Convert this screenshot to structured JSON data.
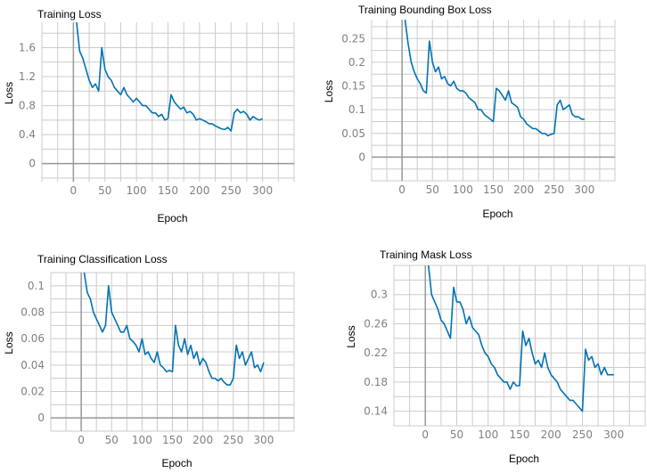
{
  "chart_data": [
    {
      "type": "line",
      "title": "Training Loss",
      "xlabel": "Epoch",
      "ylabel": "Loss",
      "xlim": [
        -50,
        350
      ],
      "ylim": [
        -0.25,
        1.95
      ],
      "xticks": [
        0,
        50,
        100,
        150,
        200,
        250,
        300
      ],
      "yticks": [
        0,
        0.4,
        0.8,
        1.2,
        1.6
      ],
      "ytick_labels": [
        "0",
        "0.4",
        "0.8",
        "1.2",
        "1.6"
      ],
      "grid": true,
      "series": [
        {
          "color": "#0072b2",
          "x": [
            5,
            10,
            15,
            20,
            25,
            30,
            35,
            40,
            45,
            50,
            55,
            60,
            65,
            70,
            75,
            80,
            85,
            90,
            95,
            100,
            105,
            110,
            115,
            120,
            125,
            130,
            135,
            140,
            145,
            150,
            155,
            160,
            165,
            170,
            175,
            180,
            185,
            190,
            195,
            200,
            205,
            210,
            215,
            220,
            225,
            230,
            235,
            240,
            245,
            250,
            255,
            260,
            265,
            270,
            275,
            280,
            285,
            290,
            295,
            300
          ],
          "y": [
            1.95,
            1.55,
            1.45,
            1.3,
            1.15,
            1.05,
            1.1,
            1.0,
            1.6,
            1.3,
            1.2,
            1.15,
            1.05,
            1.0,
            0.95,
            1.05,
            0.95,
            0.9,
            0.85,
            0.9,
            0.85,
            0.8,
            0.8,
            0.75,
            0.7,
            0.7,
            0.65,
            0.68,
            0.6,
            0.62,
            0.95,
            0.85,
            0.8,
            0.75,
            0.78,
            0.7,
            0.72,
            0.68,
            0.6,
            0.62,
            0.6,
            0.58,
            0.55,
            0.55,
            0.52,
            0.5,
            0.48,
            0.47,
            0.5,
            0.45,
            0.7,
            0.75,
            0.7,
            0.72,
            0.68,
            0.6,
            0.65,
            0.62,
            0.6,
            0.62
          ]
        }
      ]
    },
    {
      "type": "line",
      "title": "Training Bounding Box Loss",
      "xlabel": "Epoch",
      "ylabel": "Loss",
      "xlim": [
        -50,
        350
      ],
      "ylim": [
        -0.05,
        0.29
      ],
      "xticks": [
        0,
        50,
        100,
        150,
        200,
        250,
        300
      ],
      "yticks": [
        0,
        0.05,
        0.1,
        0.15,
        0.2,
        0.25
      ],
      "ytick_labels": [
        "0",
        "0.05",
        "0.1",
        "0.15",
        "0.2",
        "0.25"
      ],
      "grid": true,
      "series": [
        {
          "color": "#0072b2",
          "x": [
            5,
            10,
            15,
            20,
            25,
            30,
            35,
            40,
            45,
            50,
            55,
            60,
            65,
            70,
            75,
            80,
            85,
            90,
            95,
            100,
            105,
            110,
            115,
            120,
            125,
            130,
            135,
            140,
            145,
            150,
            155,
            160,
            165,
            170,
            175,
            180,
            185,
            190,
            195,
            200,
            205,
            210,
            215,
            220,
            225,
            230,
            235,
            240,
            245,
            250,
            255,
            260,
            265,
            270,
            275,
            280,
            285,
            290,
            295,
            300
          ],
          "y": [
            0.29,
            0.24,
            0.2,
            0.18,
            0.165,
            0.155,
            0.14,
            0.135,
            0.245,
            0.2,
            0.18,
            0.19,
            0.165,
            0.17,
            0.155,
            0.15,
            0.16,
            0.145,
            0.14,
            0.14,
            0.135,
            0.125,
            0.12,
            0.115,
            0.1,
            0.1,
            0.09,
            0.085,
            0.08,
            0.075,
            0.145,
            0.14,
            0.13,
            0.12,
            0.14,
            0.115,
            0.11,
            0.105,
            0.085,
            0.08,
            0.07,
            0.065,
            0.06,
            0.06,
            0.055,
            0.05,
            0.05,
            0.045,
            0.048,
            0.05,
            0.11,
            0.12,
            0.1,
            0.105,
            0.11,
            0.09,
            0.085,
            0.085,
            0.08,
            0.08
          ]
        }
      ]
    },
    {
      "type": "line",
      "title": "Training Classification Loss",
      "xlabel": "Epoch",
      "ylabel": "Loss",
      "xlim": [
        -50,
        350
      ],
      "ylim": [
        -0.01,
        0.11
      ],
      "xticks": [
        0,
        50,
        100,
        150,
        200,
        250,
        300
      ],
      "yticks": [
        0,
        0.02,
        0.04,
        0.06,
        0.08,
        0.1
      ],
      "ytick_labels": [
        "0",
        "0.02",
        "0.04",
        "0.06",
        "0.08",
        "0.1"
      ],
      "grid": true,
      "series": [
        {
          "color": "#0072b2",
          "x": [
            5,
            10,
            15,
            20,
            25,
            30,
            35,
            40,
            45,
            50,
            55,
            60,
            65,
            70,
            75,
            80,
            85,
            90,
            95,
            100,
            105,
            110,
            115,
            120,
            125,
            130,
            135,
            140,
            145,
            150,
            155,
            160,
            165,
            170,
            175,
            180,
            185,
            190,
            195,
            200,
            205,
            210,
            215,
            220,
            225,
            230,
            235,
            240,
            245,
            250,
            255,
            260,
            265,
            270,
            275,
            280,
            285,
            290,
            295,
            300
          ],
          "y": [
            0.11,
            0.095,
            0.09,
            0.08,
            0.075,
            0.07,
            0.065,
            0.07,
            0.1,
            0.08,
            0.075,
            0.07,
            0.065,
            0.065,
            0.07,
            0.06,
            0.058,
            0.055,
            0.05,
            0.06,
            0.048,
            0.05,
            0.045,
            0.042,
            0.05,
            0.04,
            0.038,
            0.035,
            0.036,
            0.035,
            0.07,
            0.055,
            0.05,
            0.06,
            0.048,
            0.055,
            0.045,
            0.05,
            0.04,
            0.045,
            0.042,
            0.035,
            0.03,
            0.03,
            0.028,
            0.03,
            0.027,
            0.025,
            0.025,
            0.03,
            0.055,
            0.045,
            0.05,
            0.04,
            0.045,
            0.05,
            0.038,
            0.04,
            0.035,
            0.042
          ]
        }
      ]
    },
    {
      "type": "line",
      "title": "Training Mask Loss",
      "xlabel": "Epoch",
      "ylabel": "Loss",
      "xlim": [
        -50,
        350
      ],
      "ylim": [
        0.12,
        0.34
      ],
      "xticks": [
        0,
        50,
        100,
        150,
        200,
        250,
        300
      ],
      "yticks": [
        0.14,
        0.18,
        0.22,
        0.26,
        0.3
      ],
      "ytick_labels": [
        "0.14",
        "0.18",
        "0.22",
        "0.26",
        "0.3"
      ],
      "grid": true,
      "series": [
        {
          "color": "#0072b2",
          "x": [
            5,
            10,
            15,
            20,
            25,
            30,
            35,
            40,
            45,
            50,
            55,
            60,
            65,
            70,
            75,
            80,
            85,
            90,
            95,
            100,
            105,
            110,
            115,
            120,
            125,
            130,
            135,
            140,
            145,
            150,
            155,
            160,
            165,
            170,
            175,
            180,
            185,
            190,
            195,
            200,
            205,
            210,
            215,
            220,
            225,
            230,
            235,
            240,
            245,
            250,
            255,
            260,
            265,
            270,
            275,
            280,
            285,
            290,
            295,
            300
          ],
          "y": [
            0.34,
            0.3,
            0.29,
            0.28,
            0.265,
            0.26,
            0.25,
            0.24,
            0.31,
            0.29,
            0.29,
            0.28,
            0.26,
            0.27,
            0.255,
            0.25,
            0.245,
            0.23,
            0.22,
            0.215,
            0.205,
            0.2,
            0.19,
            0.185,
            0.18,
            0.18,
            0.17,
            0.18,
            0.175,
            0.175,
            0.25,
            0.23,
            0.24,
            0.22,
            0.205,
            0.21,
            0.2,
            0.22,
            0.2,
            0.19,
            0.185,
            0.18,
            0.17,
            0.165,
            0.16,
            0.155,
            0.155,
            0.15,
            0.145,
            0.14,
            0.225,
            0.21,
            0.215,
            0.2,
            0.205,
            0.19,
            0.2,
            0.19,
            0.19,
            0.19
          ]
        }
      ]
    }
  ]
}
